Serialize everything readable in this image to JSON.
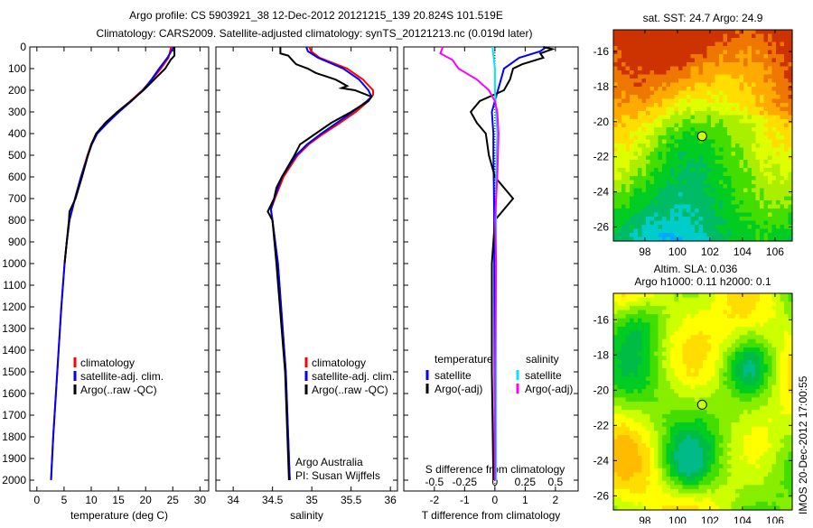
{
  "title": {
    "line1": "Argo profile: CS 5903921_38 12-Dec-2012 20121215_139 20.824S 101.519E",
    "line2": "Climatology: CARS2009. Satellite-adjusted climatology: synTS_20121213.nc (0.019d later)"
  },
  "colors": {
    "climatology": "#ff0000",
    "satellite": "#0000ff",
    "argo": "#000000",
    "sal_sat": "#00e5ff",
    "sal_argo": "#ff00ff"
  },
  "chart_data": [
    {
      "type": "line",
      "id": "temperature",
      "xlabel": "temperature (deg C)",
      "ylabel": "",
      "xlim": [
        -1.3,
        31.6
      ],
      "ylim": [
        2050,
        0
      ],
      "xticks": [
        0,
        5,
        10,
        15,
        20,
        25,
        30
      ],
      "yticks": [
        0,
        100,
        200,
        300,
        400,
        500,
        600,
        700,
        800,
        900,
        1000,
        1100,
        1200,
        1300,
        1400,
        1500,
        1600,
        1700,
        1800,
        1900,
        2000
      ],
      "legend": [
        "climatology",
        "satellite-adj. clim.",
        "Argo(..raw -QC)"
      ],
      "legend_placement": "lower-center",
      "series": [
        {
          "name": "climatology",
          "color": "#ff0000",
          "depth": [
            0,
            50,
            100,
            150,
            200,
            250,
            300,
            350,
            400,
            450,
            500,
            600,
            700,
            800,
            900,
            1000,
            1200,
            1400,
            1600,
            1800,
            2000
          ],
          "values": [
            24.7,
            24.2,
            22.8,
            21.2,
            19.4,
            17.2,
            14.8,
            12.8,
            11.0,
            10.0,
            9.3,
            8.1,
            7.0,
            6.0,
            5.5,
            5.1,
            4.5,
            4.0,
            3.5,
            3.0,
            2.6
          ]
        },
        {
          "name": "satellite-adj. clim.",
          "color": "#0000ff",
          "depth": [
            0,
            50,
            100,
            150,
            200,
            250,
            300,
            350,
            400,
            450,
            500,
            600,
            700,
            800,
            900,
            1000,
            1200,
            1400,
            1600,
            1800,
            2000
          ],
          "values": [
            25.2,
            24.0,
            22.5,
            21.1,
            19.5,
            17.4,
            15.1,
            13.0,
            11.1,
            10.1,
            9.4,
            8.1,
            7.0,
            6.0,
            5.5,
            5.1,
            4.5,
            4.0,
            3.5,
            3.0,
            2.6
          ]
        },
        {
          "name": "Argo(..raw -QC)",
          "color": "#000000",
          "depth": [
            0,
            40,
            60,
            100,
            150,
            200,
            250,
            300,
            350,
            400,
            450,
            500,
            600,
            650,
            700,
            760,
            800,
            900,
            1000
          ],
          "values": [
            25.3,
            25.3,
            24.6,
            23.6,
            21.6,
            19.6,
            17.3,
            14.8,
            12.6,
            10.9,
            10.0,
            9.4,
            8.3,
            7.7,
            7.1,
            6.0,
            5.9,
            5.5,
            5.1
          ]
        }
      ]
    },
    {
      "type": "line",
      "id": "salinity",
      "xlabel": "salinity",
      "xlim": [
        33.78,
        36.09
      ],
      "ylim": [
        2050,
        0
      ],
      "xticks": [
        34,
        34.5,
        35,
        35.5,
        36
      ],
      "legend": [
        "climatology",
        "satellite-adj. clim.",
        "Argo(..raw -QC)"
      ],
      "legend_placement": "lower-center",
      "annotation": [
        "Argo Australia",
        "PI: Susan Wijffels"
      ],
      "series": [
        {
          "name": "climatology",
          "color": "#ff0000",
          "depth": [
            0,
            20,
            50,
            100,
            150,
            200,
            220,
            250,
            300,
            350,
            400,
            450,
            500,
            600,
            700,
            750,
            800,
            1000,
            1500,
            2000
          ],
          "values": [
            34.97,
            34.99,
            35.1,
            35.45,
            35.65,
            35.78,
            35.78,
            35.72,
            35.56,
            35.36,
            35.15,
            34.96,
            34.82,
            34.64,
            34.53,
            34.48,
            34.5,
            34.57,
            34.67,
            34.72
          ]
        },
        {
          "name": "satellite-adj. clim.",
          "color": "#0000ff",
          "depth": [
            0,
            20,
            50,
            100,
            150,
            200,
            230,
            250,
            300,
            350,
            400,
            450,
            500,
            600,
            700,
            750,
            800,
            1000,
            1500,
            2000
          ],
          "values": [
            34.93,
            34.95,
            35.08,
            35.4,
            35.6,
            35.72,
            35.76,
            35.7,
            35.52,
            35.32,
            35.12,
            34.94,
            34.8,
            34.62,
            34.52,
            34.48,
            34.5,
            34.57,
            34.67,
            34.72
          ]
        },
        {
          "name": "Argo(..raw -QC)",
          "color": "#000000",
          "depth": [
            0,
            30,
            40,
            60,
            80,
            100,
            120,
            150,
            180,
            190,
            200,
            230,
            250,
            300,
            350,
            400,
            450,
            500,
            600,
            650,
            700,
            760,
            800,
            1000,
            1500,
            2000
          ],
          "values": [
            34.6,
            34.6,
            34.7,
            34.75,
            34.8,
            34.95,
            35.05,
            35.3,
            35.45,
            35.38,
            35.55,
            35.76,
            35.72,
            35.5,
            35.25,
            35.05,
            34.85,
            34.78,
            34.62,
            34.55,
            34.52,
            34.44,
            34.5,
            34.55,
            34.66,
            34.71
          ]
        }
      ]
    },
    {
      "type": "line",
      "id": "differences",
      "xlabel": "T difference from climatology",
      "x2label": "S difference from climatology",
      "xlim": [
        -3.01,
        2.75
      ],
      "ylim": [
        2050,
        0
      ],
      "xticks": [
        -2,
        -1,
        0,
        1,
        2
      ],
      "x2ticks": [
        -0.5,
        -0.25,
        0,
        0.25,
        0.5
      ],
      "legend_titles": [
        "temperature",
        "salinity"
      ],
      "legend": [
        "satellite",
        "Argo(-adj)",
        "satellite",
        "Argo(-adj)"
      ],
      "series": [
        {
          "name": "T satellite",
          "scale": "T",
          "color": "#0000ff",
          "depth": [
            0,
            20,
            50,
            100,
            150,
            200,
            300,
            400,
            500,
            700,
            1000,
            1500,
            2000
          ],
          "values": [
            1.7,
            1.5,
            0.8,
            0.3,
            0.2,
            0.1,
            -0.1,
            -0.05,
            -0.05,
            -0.03,
            -0.02,
            -0.01,
            0
          ]
        },
        {
          "name": "T Argo(-adj)",
          "scale": "T",
          "color": "#000000",
          "depth": [
            0,
            10,
            30,
            50,
            80,
            100,
            150,
            200,
            250,
            300,
            350,
            400,
            500,
            600,
            650,
            700,
            750,
            800,
            1000,
            1500,
            2000
          ],
          "values": [
            1.6,
            1.9,
            1.5,
            1.6,
            0.9,
            0.6,
            0.5,
            0.3,
            -0.5,
            -0.8,
            -0.6,
            -0.3,
            -0.2,
            0.0,
            0.3,
            0.6,
            0.3,
            0.0,
            -0.1,
            -0.1,
            -0.05
          ]
        },
        {
          "name": "S satellite",
          "scale": "S",
          "color": "#00e5ff",
          "depth": [
            0,
            50,
            100,
            200,
            300,
            400,
            600,
            800,
            1000,
            1500,
            2000
          ],
          "values": [
            -0.02,
            -0.01,
            0,
            0,
            0.01,
            0.02,
            0.01,
            0.01,
            0.01,
            0.01,
            0.01
          ]
        },
        {
          "name": "S Argo(-adj)",
          "scale": "S",
          "color": "#ff00ff",
          "depth": [
            0,
            30,
            60,
            100,
            150,
            200,
            250,
            300,
            400,
            600,
            800,
            1000,
            1500,
            2000
          ],
          "values": [
            -0.43,
            -0.45,
            -0.35,
            -0.3,
            -0.15,
            -0.05,
            0,
            0.02,
            0.03,
            0.02,
            0,
            0.01,
            0.0,
            0.0
          ]
        }
      ]
    },
    {
      "type": "heatmap",
      "id": "sst-map",
      "title": "sat. SST: 24.7 Argo: 24.9",
      "xlim": [
        96.06,
        107.06
      ],
      "ylim": [
        -26.8,
        -14.76
      ],
      "xticks": [
        98,
        100,
        102,
        104,
        106
      ],
      "yticks": [
        -16,
        -18,
        -20,
        -22,
        -24,
        -26
      ],
      "marker": {
        "lon": 101.519,
        "lat": -20.824
      },
      "colormap": [
        "#00aaff",
        "#00cccc",
        "#00bb66",
        "#00cc22",
        "#44dd00",
        "#aaee00",
        "#ddff00",
        "#ffdd00",
        "#ffaa00",
        "#ee7700",
        "#cc3300"
      ]
    },
    {
      "type": "heatmap",
      "id": "sla-map",
      "title1": "Altim. SLA: 0.036",
      "title2": "Argo h1000: 0.11 h2000: 0.1",
      "xlim": [
        96.06,
        107.06
      ],
      "ylim": [
        -26.8,
        -14.5
      ],
      "xticks": [
        98,
        100,
        102,
        104,
        106
      ],
      "yticks": [
        -16,
        -18,
        -20,
        -22,
        -24,
        -26
      ],
      "marker": {
        "lon": 101.519,
        "lat": -20.824
      },
      "colormap": [
        "#00bb88",
        "#00bb44",
        "#00cc22",
        "#44dd00",
        "#88ee00",
        "#ccff00",
        "#ffff00",
        "#ffdd00",
        "#ffbb00"
      ]
    }
  ],
  "watermark": "IMOS 20-Dec-2012 17:00:55"
}
